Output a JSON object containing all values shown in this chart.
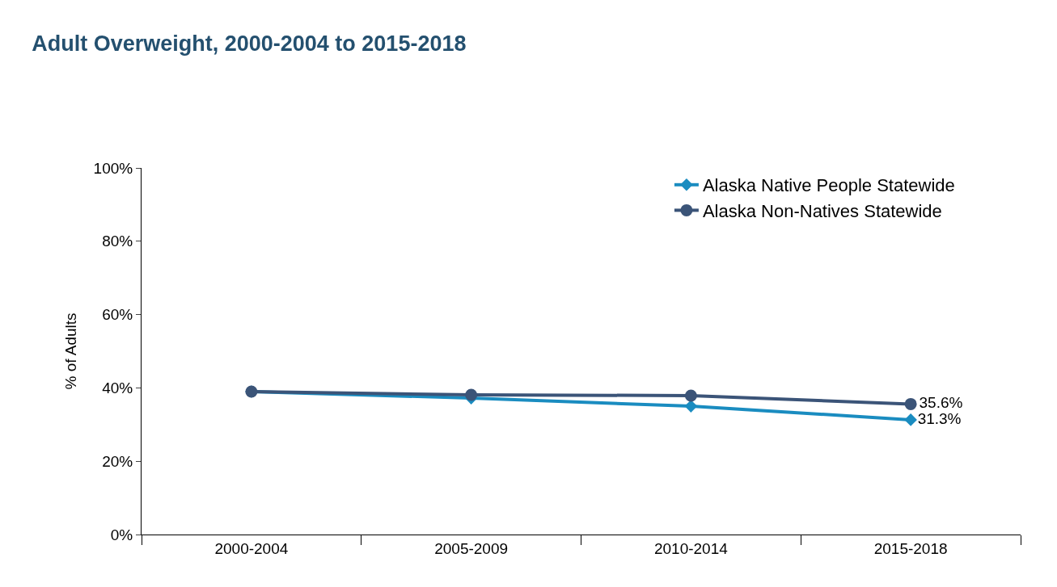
{
  "chart_data": {
    "type": "line",
    "title": "Adult Overweight, 2000-2004 to 2015-2018",
    "ylabel": "% of Adults",
    "categories": [
      "2000-2004",
      "2005-2009",
      "2010-2014",
      "2015-2018"
    ],
    "series": [
      {
        "name": "Alaska Native People Statewide",
        "color": "#1a8cc0",
        "marker": "diamond",
        "values": [
          39.0,
          37.2,
          35.0,
          31.3
        ],
        "value_labels": [
          null,
          null,
          null,
          "31.3%"
        ]
      },
      {
        "name": "Alaska Non-Natives Statewide",
        "color": "#3b5478",
        "marker": "circle",
        "values": [
          39.0,
          38.1,
          37.9,
          35.6
        ],
        "value_labels": [
          null,
          null,
          null,
          "35.6%"
        ]
      }
    ],
    "ylim": [
      0,
      100
    ],
    "yticks": [
      {
        "value": 0,
        "label": "0%"
      },
      {
        "value": 20,
        "label": "20%"
      },
      {
        "value": 40,
        "label": "40%"
      },
      {
        "value": 60,
        "label": "60%"
      },
      {
        "value": 80,
        "label": "80%"
      },
      {
        "value": 100,
        "label": "100%"
      }
    ],
    "legend": "top right",
    "line_style": "solid"
  }
}
